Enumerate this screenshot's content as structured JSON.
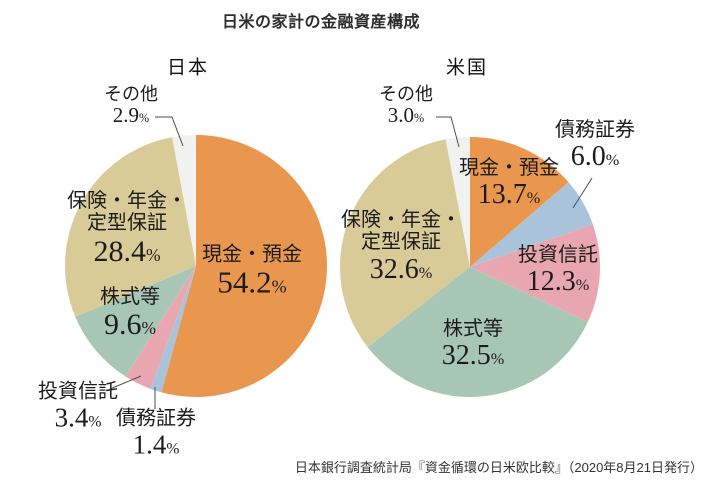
{
  "title": "日米の家計の金融資産構成",
  "source_note": "日本銀行調査統計局『資金循環の日米欧比較』（2020年8月21日発行）",
  "percent_sign": "%",
  "colors": {
    "cash_deposits": "#E9974F",
    "debt_securities": "#A9C3DA",
    "investment_trusts": "#E8A7B0",
    "equities": "#A8C6B6",
    "insurance_pension": "#D9CB98",
    "other": "#F1F1EF"
  },
  "chart_data": [
    {
      "type": "pie",
      "title": "日本",
      "start_angle": "top",
      "direction": "clockwise",
      "slices": [
        {
          "key": "cash-deposits",
          "label": "現金・預金",
          "value": 54.2,
          "display": "54.2",
          "color": "#E9974F"
        },
        {
          "key": "debt-securities",
          "label": "債務証券",
          "value": 1.4,
          "display": "1.4",
          "color": "#A9C3DA"
        },
        {
          "key": "investment-trusts",
          "label": "投資信託",
          "value": 3.4,
          "display": "3.4",
          "color": "#E8A7B0"
        },
        {
          "key": "equities",
          "label": "株式等",
          "value": 9.6,
          "display": "9.6",
          "color": "#A8C6B6"
        },
        {
          "key": "insurance-pension",
          "label": "保険・年金・定型保証",
          "label_line1": "保険・年金・",
          "label_line2": "定型保証",
          "value": 28.4,
          "display": "28.4",
          "color": "#D9CB98"
        },
        {
          "key": "other",
          "label": "その他",
          "value": 2.9,
          "display": "2.9",
          "color": "#F1F1EF"
        }
      ]
    },
    {
      "type": "pie",
      "title": "米国",
      "start_angle": "top",
      "direction": "clockwise",
      "slices": [
        {
          "key": "cash-deposits",
          "label": "現金・預金",
          "value": 13.7,
          "display": "13.7",
          "color": "#E9974F"
        },
        {
          "key": "debt-securities",
          "label": "債務証券",
          "value": 6.0,
          "display": "6.0",
          "color": "#A9C3DA"
        },
        {
          "key": "investment-trusts",
          "label": "投資信託",
          "value": 12.3,
          "display": "12.3",
          "color": "#E8A7B0"
        },
        {
          "key": "equities",
          "label": "株式等",
          "value": 32.5,
          "display": "32.5",
          "color": "#A8C6B6"
        },
        {
          "key": "insurance-pension",
          "label": "保険・年金・定型保証",
          "label_line1": "保険・年金・",
          "label_line2": "定型保証",
          "value": 32.6,
          "display": "32.6",
          "color": "#D9CB98"
        },
        {
          "key": "other",
          "label": "その他",
          "value": 3.0,
          "display": "3.0",
          "color": "#F1F1EF"
        }
      ]
    }
  ]
}
